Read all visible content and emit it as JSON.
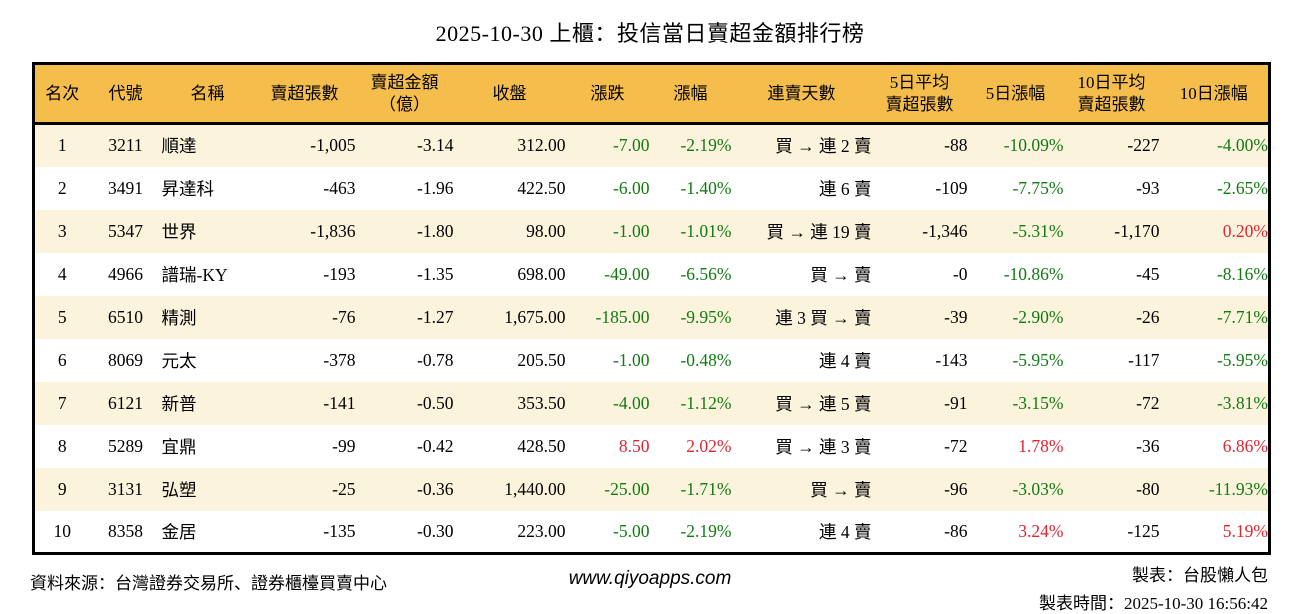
{
  "title": "2025-10-30 上櫃：投信當日賣超金額排行榜",
  "colors": {
    "header_bg": "#F5BD4C",
    "row_stripe": "#FCF3DC",
    "up_red": "#E42430",
    "down_green": "#117B11",
    "border": "#000000"
  },
  "footer": {
    "source": "資料來源：台灣證券交易所、證券櫃檯買賣中心",
    "website": "www.qiyoapps.com",
    "maker": "製表：台股懶人包",
    "made_time": "製表時間：2025-10-30 16:56:42"
  },
  "chart_data": {
    "type": "table",
    "title": "2025-10-30 上櫃：投信當日賣超金額排行榜",
    "columns": [
      "名次",
      "代號",
      "名稱",
      "賣超張數",
      "賣超金額\n（億）",
      "收盤",
      "漲跌",
      "漲幅",
      "連賣天數",
      "5日平均\n賣超張數",
      "5日漲幅",
      "10日平均\n賣超張數",
      "10日漲幅"
    ],
    "rows": [
      [
        "1",
        "3211",
        "順達",
        "-1,005",
        "-3.14",
        "312.00",
        "-7.00",
        "-2.19%",
        "買 → 連 2 賣",
        "-88",
        "-10.09%",
        "-227",
        "-4.00%"
      ],
      [
        "2",
        "3491",
        "昇達科",
        "-463",
        "-1.96",
        "422.50",
        "-6.00",
        "-1.40%",
        "連 6 賣",
        "-109",
        "-7.75%",
        "-93",
        "-2.65%"
      ],
      [
        "3",
        "5347",
        "世界",
        "-1,836",
        "-1.80",
        "98.00",
        "-1.00",
        "-1.01%",
        "買 → 連 19 賣",
        "-1,346",
        "-5.31%",
        "-1,170",
        "0.20%"
      ],
      [
        "4",
        "4966",
        "譜瑞-KY",
        "-193",
        "-1.35",
        "698.00",
        "-49.00",
        "-6.56%",
        "買 → 賣",
        "-0",
        "-10.86%",
        "-45",
        "-8.16%"
      ],
      [
        "5",
        "6510",
        "精測",
        "-76",
        "-1.27",
        "1,675.00",
        "-185.00",
        "-9.95%",
        "連 3 買 → 賣",
        "-39",
        "-2.90%",
        "-26",
        "-7.71%"
      ],
      [
        "6",
        "8069",
        "元太",
        "-378",
        "-0.78",
        "205.50",
        "-1.00",
        "-0.48%",
        "連 4 賣",
        "-143",
        "-5.95%",
        "-117",
        "-5.95%"
      ],
      [
        "7",
        "6121",
        "新普",
        "-141",
        "-0.50",
        "353.50",
        "-4.00",
        "-1.12%",
        "買 → 連 5 賣",
        "-91",
        "-3.15%",
        "-72",
        "-3.81%"
      ],
      [
        "8",
        "5289",
        "宜鼎",
        "-99",
        "-0.42",
        "428.50",
        "8.50",
        "2.02%",
        "買 → 連 3 賣",
        "-72",
        "1.78%",
        "-36",
        "6.86%"
      ],
      [
        "9",
        "3131",
        "弘塑",
        "-25",
        "-0.36",
        "1,440.00",
        "-25.00",
        "-1.71%",
        "買 → 賣",
        "-96",
        "-3.03%",
        "-80",
        "-11.93%"
      ],
      [
        "10",
        "8358",
        "金居",
        "-135",
        "-0.30",
        "223.00",
        "-5.00",
        "-2.19%",
        "連 4 賣",
        "-86",
        "3.24%",
        "-125",
        "5.19%"
      ]
    ],
    "colored_columns": [
      6,
      7,
      10,
      12
    ],
    "color_rule": "negative values green (down), positive values red (up)",
    "legend_position": "none",
    "grid": "zebra-stripes"
  }
}
